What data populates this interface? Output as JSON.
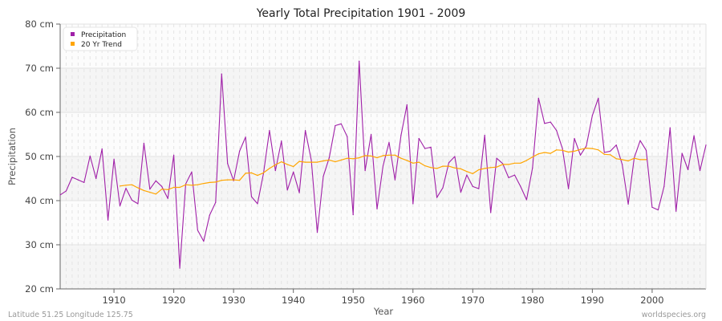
{
  "chart_data": {
    "type": "line",
    "title": "Yearly Total Precipitation 1901 - 2009",
    "xlabel": "Year",
    "ylabel": "Precipitation",
    "xlim": [
      1901,
      2009
    ],
    "ylim": [
      20,
      80
    ],
    "xticks": [
      1910,
      1920,
      1930,
      1940,
      1950,
      1960,
      1970,
      1980,
      1990,
      2000
    ],
    "yticks": [
      {
        "value": 20,
        "label": "20 cm"
      },
      {
        "value": 30,
        "label": "30 cm"
      },
      {
        "value": 40,
        "label": "40 cm"
      },
      {
        "value": 50,
        "label": "50 cm"
      },
      {
        "value": 60,
        "label": "60 cm"
      },
      {
        "value": 70,
        "label": "70 cm"
      },
      {
        "value": 80,
        "label": "80 cm"
      }
    ],
    "grid": true,
    "legend_position": "top-left",
    "series": [
      {
        "name": "Precipitation",
        "color": "#a020a8",
        "start_year": 1901,
        "values": [
          41.3,
          42.2,
          45.3,
          44.7,
          44.1,
          50.1,
          45.0,
          51.7,
          35.6,
          49.4,
          38.8,
          42.8,
          40.1,
          39.3,
          53.0,
          42.6,
          44.5,
          43.2,
          40.5,
          50.3,
          24.7,
          43.8,
          46.5,
          33.3,
          30.8,
          36.7,
          39.6,
          68.7,
          48.4,
          44.5,
          51.2,
          54.4,
          40.9,
          39.3,
          46.1,
          55.9,
          46.8,
          53.5,
          42.4,
          46.5,
          41.8,
          55.9,
          49.1,
          32.8,
          45.5,
          49.7,
          57.0,
          57.4,
          54.5,
          36.8,
          71.6,
          46.8,
          55.0,
          38.1,
          47.9,
          53.2,
          44.7,
          54.8,
          61.7,
          39.3,
          54.1,
          51.8,
          52.1,
          40.7,
          42.9,
          48.6,
          50.0,
          41.9,
          45.8,
          43.2,
          42.7,
          54.8,
          37.3,
          49.6,
          48.4,
          45.2,
          45.8,
          43.2,
          40.2,
          47.4,
          63.2,
          57.5,
          57.8,
          55.9,
          51.8,
          42.7,
          54.1,
          50.3,
          52.4,
          59.3,
          63.2,
          50.9,
          51.2,
          52.6,
          48.2,
          39.2,
          49.7,
          53.6,
          51.4,
          38.5,
          37.9,
          43.2,
          56.5,
          37.6,
          50.7,
          47.0,
          54.7,
          46.8,
          52.6
        ]
      },
      {
        "name": "20 Yr Trend",
        "color": "#ffa500",
        "start_year": 1911,
        "values": [
          43.3,
          43.5,
          43.6,
          42.9,
          42.3,
          41.9,
          41.5,
          42.6,
          42.5,
          43.0,
          43.0,
          43.6,
          43.5,
          43.6,
          43.9,
          44.1,
          44.2,
          44.6,
          44.7,
          44.7,
          44.6,
          46.2,
          46.3,
          45.7,
          46.3,
          47.3,
          48.1,
          48.8,
          48.2,
          47.7,
          48.9,
          48.7,
          48.7,
          48.7,
          49.0,
          49.2,
          48.8,
          49.2,
          49.6,
          49.5,
          49.7,
          50.2,
          50.1,
          49.7,
          50.2,
          50.3,
          50.3,
          49.6,
          49.1,
          48.5,
          48.7,
          47.9,
          47.5,
          47.3,
          47.8,
          47.8,
          47.4,
          47.2,
          46.6,
          46.1,
          47.0,
          47.3,
          47.5,
          47.6,
          48.2,
          48.2,
          48.5,
          48.5,
          49.1,
          49.9,
          50.6,
          50.9,
          50.7,
          51.5,
          51.4,
          51.0,
          51.2,
          51.6,
          51.9,
          51.8,
          51.5,
          50.5,
          50.4,
          49.5,
          49.3,
          49.0,
          49.6,
          49.3,
          49.3
        ]
      }
    ]
  },
  "footer": {
    "location": "Latitude 51.25 Longitude 125.75",
    "credit": "worldspecies.org"
  }
}
